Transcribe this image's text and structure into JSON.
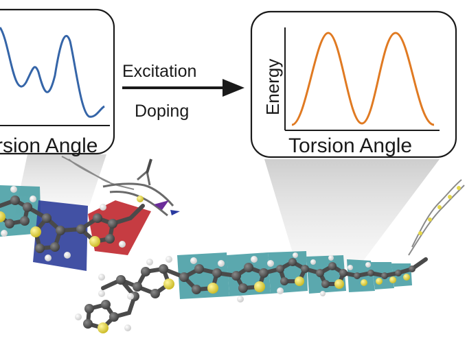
{
  "left_panel": {
    "xlabel": "rsion Angle",
    "curve_color": "#3565a8"
  },
  "arrow": {
    "top_label": "Excitation",
    "bottom_label": "Doping"
  },
  "right_panel": {
    "ylabel": "Energy",
    "xlabel": "Torsion Angle",
    "curve_color": "#e07a22"
  },
  "colors": {
    "ring_panel_teal": "#3f9aa0",
    "ring_panel_blue": "#2d3e9a",
    "ring_panel_red": "#c0272d",
    "carbon": "#4a4a4a",
    "sulfur": "#e6d84a",
    "hydrogen": "#f2f2f2",
    "spotlight": "#d9d9d9"
  }
}
